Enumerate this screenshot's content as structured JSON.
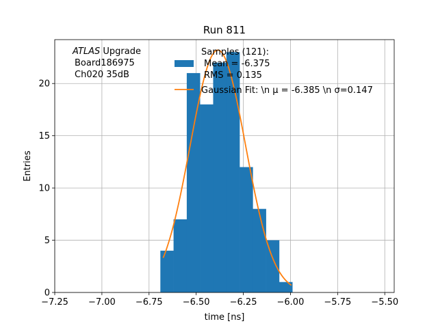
{
  "colors": {
    "hist": "#1f77b4",
    "fit": "#ff7f0e",
    "grid": "#b0b0b0"
  },
  "chart_data": {
    "type": "bar",
    "title": "Run 811",
    "xlabel": "time [ns]",
    "ylabel": "Entries",
    "xlim": [
      -7.25,
      -5.45
    ],
    "ylim": [
      0,
      24.2
    ],
    "grid": true,
    "xticks": [
      -7.25,
      -7.0,
      -6.75,
      -6.5,
      -6.25,
      -6.0,
      -5.75,
      -5.5
    ],
    "xtick_labels": [
      "−7.25",
      "−7.00",
      "−6.75",
      "−6.50",
      "−6.25",
      "−6.00",
      "−5.75",
      "−5.50"
    ],
    "yticks": [
      0,
      5,
      10,
      15,
      20
    ],
    "ytick_labels": [
      "0",
      "5",
      "10",
      "15",
      "20"
    ],
    "histogram": {
      "bin_edges": [
        -6.69,
        -6.62,
        -6.55,
        -6.48,
        -6.41,
        -6.34,
        -6.27,
        -6.2,
        -6.13,
        -6.06,
        -5.99
      ],
      "counts": [
        4,
        7,
        21,
        18,
        22,
        23,
        12,
        8,
        5,
        1
      ]
    },
    "gaussian_fit": {
      "mu": -6.385,
      "sigma": 0.147,
      "amplitude": 23.2,
      "x_range": [
        -6.675,
        -5.995
      ]
    },
    "legend": {
      "position": "top-right",
      "hist_label_lines": [
        "Samples (121):",
        "Mean = -6.375",
        "RMS = 0.135"
      ],
      "fit_label": "Gaussian Fit: \\n μ = -6.385 \\n σ=0.147"
    },
    "annotation": {
      "line1_italic": "ATLAS",
      "line1_rest": " Upgrade",
      "line2": "Board186975",
      "line3": "Ch020 35dB"
    }
  }
}
